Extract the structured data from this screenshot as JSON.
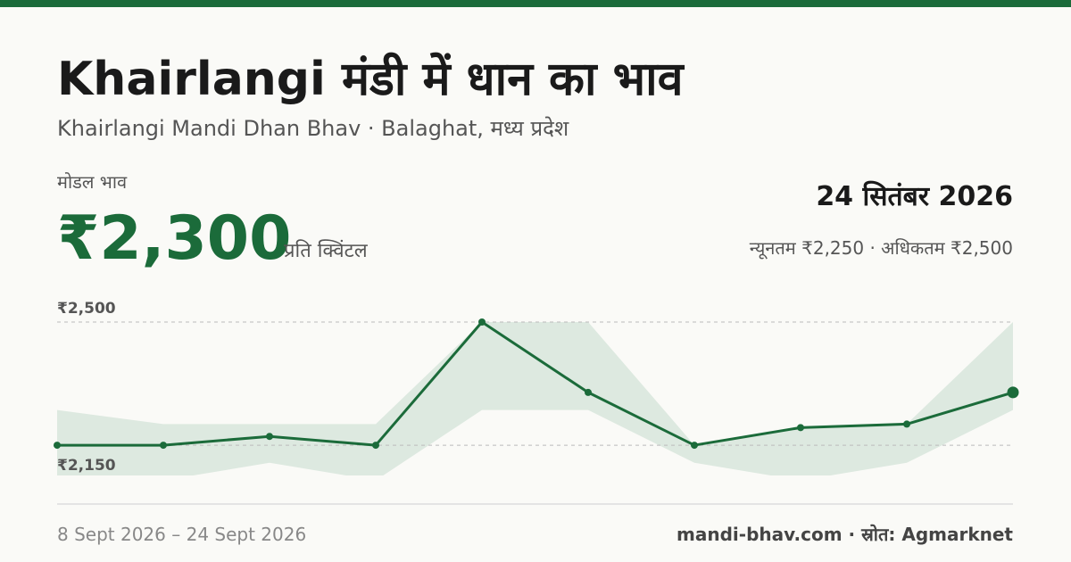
{
  "header": {
    "title": "Khairlangi मंडी में धान का भाव",
    "subtitle": "Khairlangi Mandi Dhan Bhav · Balaghat, मध्य प्रदेश"
  },
  "price": {
    "label": "मोडल भाव",
    "modal_price": "₹2,300",
    "unit": "प्रति क्विंटल",
    "date": "24 सितंबर 2026",
    "range": "न्यूनतम ₹2,250 · अधिकतम ₹2,500"
  },
  "chart_data": {
    "type": "line",
    "values": [
      2150,
      2150,
      2175,
      2150,
      2500,
      2300,
      2150,
      2200,
      2210,
      2300
    ],
    "high": [
      2250,
      2210,
      2210,
      2210,
      2500,
      2500,
      2150,
      2200,
      2210,
      2500
    ],
    "low": [
      2050,
      2050,
      2100,
      2050,
      2250,
      2250,
      2100,
      2050,
      2100,
      2250
    ],
    "color": "#1b6b3a",
    "band_color": "#dde9e0",
    "ylim": [
      2064,
      2500
    ],
    "yticks": [
      {
        "value": 2500,
        "label": "₹2,500"
      },
      {
        "value": 2150,
        "label": "₹2,150"
      }
    ],
    "grid": true
  },
  "footer": {
    "date_range": "8 Sept 2026 – 24 Sept 2026",
    "source": "mandi-bhav.com · स्रोत: Agmarknet"
  }
}
